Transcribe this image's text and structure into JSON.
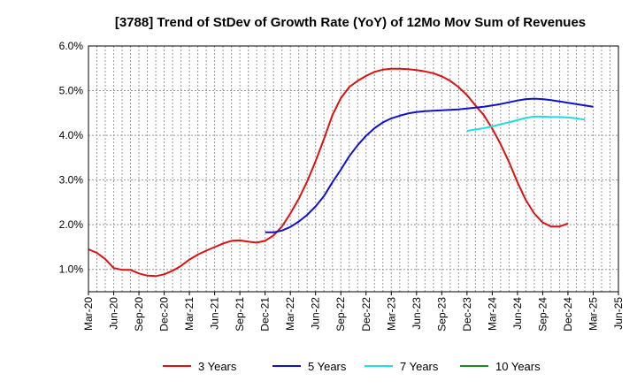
{
  "chart_data": {
    "type": "line",
    "title": "[3788]  Trend of StDev of Growth Rate (YoY) of 12Mo Mov Sum of Revenues",
    "xlabel": "",
    "ylabel": "",
    "ylim": [
      0.005,
      0.06
    ],
    "y_ticks": [
      0.01,
      0.02,
      0.03,
      0.04,
      0.05,
      0.06
    ],
    "y_tick_labels": [
      "1.0%",
      "2.0%",
      "3.0%",
      "4.0%",
      "5.0%",
      "6.0%"
    ],
    "x_tick_labels": [
      "Mar-20",
      "Jun-20",
      "Sep-20",
      "Dec-20",
      "Mar-21",
      "Jun-21",
      "Sep-21",
      "Dec-21",
      "Mar-22",
      "Jun-22",
      "Sep-22",
      "Dec-22",
      "Mar-23",
      "Jun-23",
      "Sep-23",
      "Dec-23",
      "Mar-24",
      "Jun-24",
      "Sep-24",
      "Dec-24",
      "Mar-25",
      "Jun-25"
    ],
    "grid": true,
    "legend_position": "bottom",
    "series": [
      {
        "name": "3 Years",
        "color": "#dd1111",
        "start_index": 0,
        "values": [
          0.0145,
          0.0137,
          0.0123,
          0.0103,
          0.0099,
          0.0099,
          0.0091,
          0.0086,
          0.0085,
          0.0089,
          0.0097,
          0.0108,
          0.0122,
          0.0133,
          0.0142,
          0.015,
          0.0158,
          0.0164,
          0.0165,
          0.0162,
          0.016,
          0.0164,
          0.0176,
          0.0196,
          0.0225,
          0.0258,
          0.0297,
          0.0342,
          0.0392,
          0.0445,
          0.0483,
          0.0508,
          0.0522,
          0.0533,
          0.0542,
          0.0547,
          0.0549,
          0.0549,
          0.0548,
          0.0546,
          0.0543,
          0.0539,
          0.0532,
          0.0522,
          0.0508,
          0.049,
          0.0467,
          0.0445,
          0.0415,
          0.038,
          0.034,
          0.0295,
          0.0255,
          0.0225,
          0.0205,
          0.0196,
          0.0196,
          0.0203
        ]
      },
      {
        "name": "5 Years",
        "color": "#1111cc",
        "start_index": 21,
        "values": [
          0.0183,
          0.0183,
          0.0187,
          0.0195,
          0.0207,
          0.0222,
          0.0241,
          0.0264,
          0.0295,
          0.0323,
          0.0353,
          0.0378,
          0.0399,
          0.0416,
          0.0429,
          0.0438,
          0.0444,
          0.0449,
          0.0452,
          0.0454,
          0.0455,
          0.0456,
          0.0457,
          0.0458,
          0.046,
          0.0462,
          0.0464,
          0.0467,
          0.047,
          0.0474,
          0.0478,
          0.0481,
          0.0482,
          0.0481,
          0.0479,
          0.0476,
          0.0473,
          0.047,
          0.0467,
          0.0464
        ]
      },
      {
        "name": "7 Years",
        "color": "#22dddd",
        "start_index": 45,
        "values": [
          0.041,
          0.0413,
          0.0416,
          0.042,
          0.0425,
          0.0429,
          0.0434,
          0.0439,
          0.0442,
          0.0442,
          0.0441,
          0.0441,
          0.044,
          0.0438,
          0.0435
        ]
      },
      {
        "name": "10 Years",
        "color": "#228822",
        "start_index": 0,
        "values": []
      }
    ]
  }
}
